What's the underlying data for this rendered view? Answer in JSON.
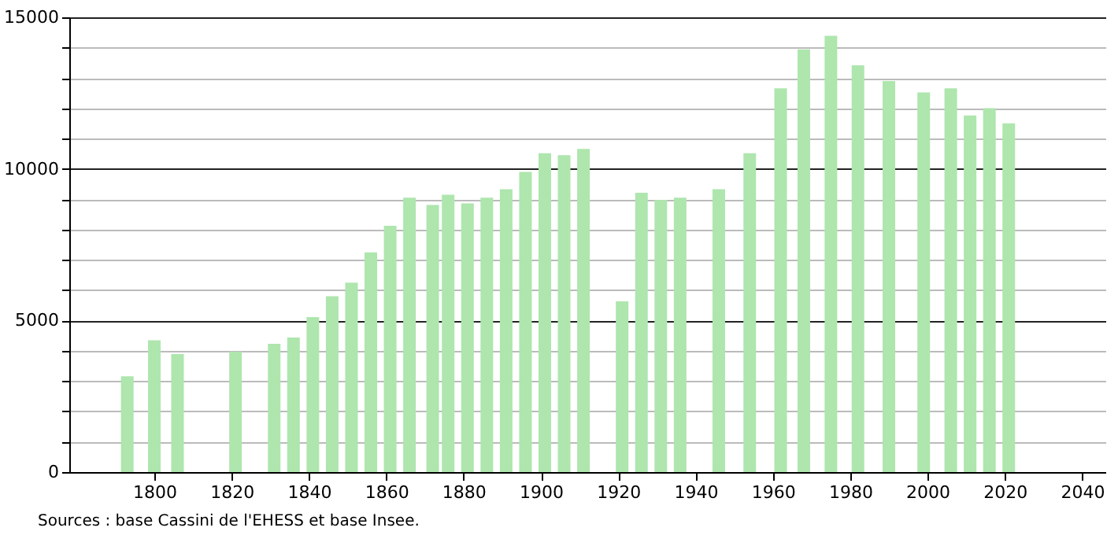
{
  "chart_data": {
    "type": "bar",
    "x": [
      1793,
      1800,
      1806,
      1821,
      1831,
      1836,
      1841,
      1846,
      1851,
      1856,
      1861,
      1866,
      1872,
      1876,
      1881,
      1886,
      1891,
      1896,
      1901,
      1906,
      1911,
      1921,
      1926,
      1931,
      1936,
      1946,
      1954,
      1962,
      1968,
      1975,
      1982,
      1990,
      1999,
      2006,
      2011,
      2016,
      2021
    ],
    "series": [
      {
        "color": "#aee6ae",
        "values": [
          3160,
          4350,
          3890,
          3970,
          4230,
          4440,
          5110,
          5800,
          6250,
          7250,
          8120,
          9050,
          8810,
          9150,
          8860,
          9050,
          9330,
          9900,
          10520,
          10450,
          10660,
          5630,
          9210,
          8980,
          9050,
          9330,
          10520,
          12660,
          13940,
          14390,
          13420,
          12900,
          12520,
          12660,
          11760,
          12000,
          11500
        ]
      }
    ],
    "xlim": [
      1778,
      2046
    ],
    "xticks": [
      1800,
      1820,
      1840,
      1860,
      1880,
      1900,
      1920,
      1940,
      1960,
      1980,
      2000,
      2020,
      2040
    ],
    "ylim": [
      0,
      15000
    ],
    "yticks": [
      0,
      {
        "value": 1000,
        "label": null
      },
      {
        "value": 2000,
        "label": null
      },
      {
        "value": 3000,
        "label": null
      },
      {
        "value": 4000,
        "label": null
      },
      5000,
      {
        "value": 6000,
        "label": null
      },
      {
        "value": 7000,
        "label": null
      },
      {
        "value": 8000,
        "label": null
      },
      {
        "value": 9000,
        "label": null
      },
      10000,
      {
        "value": 11000,
        "label": null
      },
      {
        "value": 12000,
        "label": null
      },
      {
        "value": 13000,
        "label": null
      },
      {
        "value": 14000,
        "label": null
      },
      15000
    ],
    "grid": "y",
    "annotations": [
      "Sources : base Cassini de l'EHESS et base Insee."
    ]
  }
}
